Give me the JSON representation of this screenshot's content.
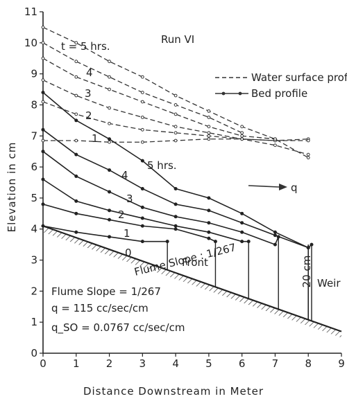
{
  "chart_data": {
    "type": "line",
    "title": "Run VI",
    "xlabel": "Distance Downstream in Meter",
    "ylabel": "Elevation in cm",
    "xlim": [
      0,
      9
    ],
    "ylim": [
      0,
      11
    ],
    "xticks": [
      "0",
      "1",
      "2",
      "3",
      "4",
      "5",
      "6",
      "7",
      "8",
      "9"
    ],
    "yticks": [
      "0",
      "1",
      "2",
      "3",
      "4",
      "5",
      "6",
      "7",
      "8",
      "9",
      "10",
      "11"
    ],
    "grid": false,
    "legend": {
      "placement": "top-right",
      "entries": [
        {
          "label": "Water surface profile",
          "style": "dashed"
        },
        {
          "label": "Bed profile",
          "style": "solid-dots"
        }
      ]
    },
    "water_surface_series": [
      {
        "label": "",
        "x": [
          0,
          1,
          2,
          3,
          4,
          5,
          6,
          7,
          8
        ],
        "y": [
          6.85,
          6.85,
          6.8,
          6.8,
          6.85,
          6.9,
          6.9,
          6.85,
          6.9
        ]
      },
      {
        "label": "1",
        "x": [
          0,
          1,
          2,
          3,
          4,
          5,
          6,
          7,
          8
        ],
        "y": [
          8.1,
          7.7,
          7.4,
          7.2,
          7.1,
          7.0,
          6.9,
          6.85,
          6.85
        ]
      },
      {
        "label": "2",
        "x": [
          0,
          1,
          2,
          3,
          4,
          5,
          6,
          7,
          8
        ],
        "y": [
          8.8,
          8.3,
          7.9,
          7.6,
          7.3,
          7.1,
          6.9,
          6.7,
          6.4
        ]
      },
      {
        "label": "3",
        "x": [
          0,
          1,
          2,
          3,
          4,
          5,
          6,
          7
        ],
        "y": [
          9.5,
          8.9,
          8.5,
          8.1,
          7.7,
          7.3,
          7.0,
          6.9
        ]
      },
      {
        "label": "4",
        "x": [
          0,
          1,
          2,
          3,
          4,
          5,
          6
        ],
        "y": [
          10.0,
          9.4,
          8.9,
          8.4,
          8.0,
          7.6,
          7.1
        ]
      },
      {
        "label": "t = 5 hrs.",
        "x": [
          0,
          1,
          2,
          3,
          4,
          5,
          6,
          7,
          8
        ],
        "y": [
          10.5,
          10.0,
          9.4,
          8.9,
          8.3,
          7.8,
          7.3,
          6.9,
          6.3
        ]
      }
    ],
    "bed_series": [
      {
        "label": "0",
        "x": [
          0,
          1,
          2,
          3,
          3.75
        ],
        "y": [
          4.1,
          3.9,
          3.75,
          3.6,
          3.6
        ]
      },
      {
        "label": "1",
        "x": [
          0,
          1,
          2,
          3,
          4,
          5,
          5.2
        ],
        "y": [
          4.8,
          4.5,
          4.3,
          4.1,
          4.0,
          3.7,
          3.6
        ]
      },
      {
        "label": "2",
        "x": [
          0,
          1,
          2,
          3,
          4,
          5,
          6,
          6.2
        ],
        "y": [
          5.6,
          4.9,
          4.6,
          4.35,
          4.1,
          3.9,
          3.6,
          3.6
        ]
      },
      {
        "label": "3",
        "x": [
          0,
          1,
          2,
          3,
          4,
          5,
          6,
          7,
          7.1
        ],
        "y": [
          6.5,
          5.7,
          5.2,
          4.7,
          4.4,
          4.2,
          3.9,
          3.5,
          3.75
        ]
      },
      {
        "label": "4",
        "x": [
          0,
          1,
          2,
          3,
          4,
          5,
          6,
          7,
          8,
          8.1
        ],
        "y": [
          7.2,
          6.4,
          5.9,
          5.3,
          4.8,
          4.6,
          4.2,
          3.8,
          3.4,
          3.5
        ]
      },
      {
        "label": "5 hrs.",
        "x": [
          0,
          1,
          2,
          3,
          4,
          5,
          6,
          7,
          8
        ],
        "y": [
          8.4,
          7.5,
          6.9,
          6.2,
          5.3,
          5.0,
          4.5,
          3.9,
          3.4
        ]
      }
    ],
    "flume_bed": {
      "label": "Flume Slope : 1/267",
      "x": [
        0,
        9
      ],
      "y": [
        4.1,
        0.7
      ]
    },
    "front_lines_x": [
      3.75,
      5.2,
      6.2,
      7.1,
      8.0
    ],
    "annotations": {
      "front": "Front",
      "weir": "Weir",
      "weir_height": "20 cm",
      "q_arrow": "q",
      "info_lines": [
        "Flume Slope = 1/267",
        "q = 115 cc/sec/cm",
        "q_SO = 0.0767 cc/sec/cm"
      ]
    }
  }
}
